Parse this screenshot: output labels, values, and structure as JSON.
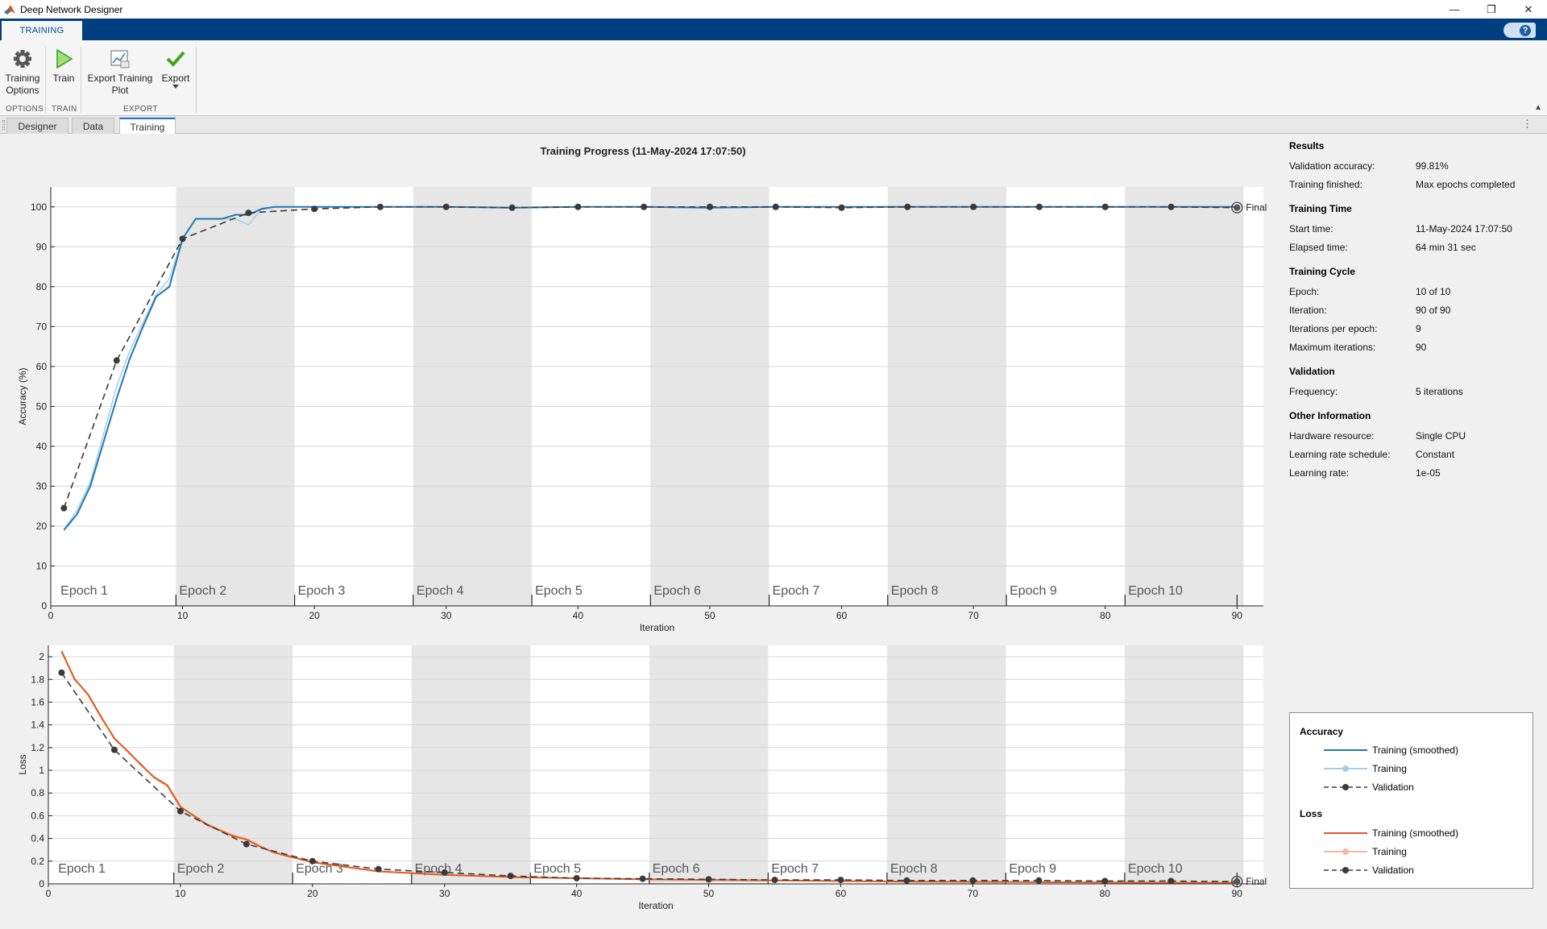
{
  "window": {
    "title": "Deep Network Designer",
    "controls": [
      "—",
      "❐",
      "✕"
    ]
  },
  "ribbon": {
    "active_tab": "TRAINING",
    "help": "?"
  },
  "toolstrip": {
    "training_options": [
      "Training",
      "Options"
    ],
    "train": "Train",
    "export_plot": [
      "Export Training",
      "Plot"
    ],
    "export": "Export",
    "sections": {
      "options": "OPTIONS",
      "train": "TRAIN",
      "export": "EXPORT"
    }
  },
  "doc_tabs": [
    "Designer",
    "Data",
    "Training"
  ],
  "active_doc_tab": "Training",
  "results": {
    "heading": "Results",
    "validation_accuracy_label": "Validation accuracy:",
    "validation_accuracy": "99.81%",
    "training_finished_label": "Training finished:",
    "training_finished": "Max epochs completed"
  },
  "training_time": {
    "heading": "Training Time",
    "start_label": "Start time:",
    "start": "11-May-2024 17:07:50",
    "elapsed_label": "Elapsed time:",
    "elapsed": "64 min 31 sec"
  },
  "training_cycle": {
    "heading": "Training Cycle",
    "epoch_label": "Epoch:",
    "epoch": "10 of 10",
    "iteration_label": "Iteration:",
    "iteration": "90 of 90",
    "ipe_label": "Iterations per epoch:",
    "ipe": "9",
    "max_label": "Maximum iterations:",
    "max": "90"
  },
  "validation": {
    "heading": "Validation",
    "freq_label": "Frequency:",
    "freq": "5 iterations"
  },
  "other": {
    "heading": "Other Information",
    "hw_label": "Hardware resource:",
    "hw": "Single CPU",
    "lrs_label": "Learning rate schedule:",
    "lrs": "Constant",
    "lr_label": "Learning rate:",
    "lr": "1e-05"
  },
  "legend": {
    "acc_heading": "Accuracy",
    "loss_heading": "Loss",
    "smoothed": "Training (smoothed)",
    "training": "Training",
    "validation": "Validation"
  },
  "colors": {
    "acc_line": "#1f77b4",
    "acc_raw": "#a6cde8",
    "loss_line": "#e2581c",
    "loss_raw": "#f2b9a0",
    "val": "#3a3a3a",
    "band": "#e6e6e6"
  },
  "chart_data": [
    {
      "type": "line",
      "title": "Training Progress (11-May-2024 17:07:50)",
      "xlabel": "Iteration",
      "ylabel": "Accuracy (%)",
      "xlim": [
        0,
        92
      ],
      "ylim": [
        0,
        105
      ],
      "xticks": [
        0,
        10,
        20,
        30,
        40,
        50,
        60,
        70,
        80,
        90
      ],
      "yticks": [
        0,
        10,
        20,
        30,
        40,
        50,
        60,
        70,
        80,
        90,
        100
      ],
      "epochs": [
        "Epoch 1",
        "Epoch 2",
        "Epoch 3",
        "Epoch 4",
        "Epoch 5",
        "Epoch 6",
        "Epoch 7",
        "Epoch 8",
        "Epoch 9",
        "Epoch 10"
      ],
      "final_label": "Final",
      "series": [
        {
          "name": "Training (smoothed)",
          "x": [
            1,
            2,
            3,
            4,
            5,
            6,
            7,
            8,
            9,
            10,
            11,
            12,
            13,
            14,
            15,
            16,
            17,
            18,
            19,
            20,
            25,
            30,
            35,
            40,
            45,
            50,
            55,
            60,
            65,
            70,
            75,
            80,
            85,
            90
          ],
          "y": [
            19,
            23,
            30,
            41,
            52,
            62,
            70,
            77.5,
            80,
            92,
            97,
            97,
            97,
            98,
            98,
            99.5,
            100,
            100,
            100,
            100,
            100,
            100,
            99.8,
            100,
            100,
            99.8,
            100,
            100,
            100,
            100,
            100,
            100,
            100,
            100
          ]
        },
        {
          "name": "Training",
          "x": [
            1,
            2,
            3,
            4,
            5,
            6,
            7,
            8,
            9,
            10,
            11,
            12,
            13,
            14,
            15,
            16,
            17,
            18,
            19,
            20,
            25,
            30,
            35,
            40,
            45,
            50,
            55,
            60,
            65,
            70,
            75,
            80,
            85,
            90
          ],
          "y": [
            19,
            24,
            31,
            43,
            55,
            64,
            71,
            78,
            82,
            92,
            97,
            97,
            97,
            97,
            95.5,
            99.5,
            100,
            100,
            100,
            100,
            100,
            100,
            99.8,
            100,
            100,
            99.7,
            100,
            100,
            100,
            100,
            100,
            100,
            100,
            100
          ]
        },
        {
          "name": "Validation",
          "x": [
            1,
            5,
            10,
            15,
            20,
            25,
            30,
            35,
            40,
            45,
            50,
            55,
            60,
            65,
            70,
            75,
            80,
            85,
            90
          ],
          "y": [
            24.5,
            61.5,
            92,
            98.5,
            99.5,
            100,
            100,
            99.8,
            100,
            100,
            100,
            100,
            99.8,
            100,
            100,
            100,
            100,
            100,
            99.81
          ]
        }
      ]
    },
    {
      "type": "line",
      "xlabel": "Iteration",
      "ylabel": "Loss",
      "xlim": [
        0,
        92
      ],
      "ylim": [
        0,
        2.1
      ],
      "xticks": [
        0,
        10,
        20,
        30,
        40,
        50,
        60,
        70,
        80,
        90
      ],
      "yticks": [
        0,
        0.2,
        0.4,
        0.6,
        0.8,
        1,
        1.2,
        1.4,
        1.6,
        1.8,
        2
      ],
      "epochs": [
        "Epoch 1",
        "Epoch 2",
        "Epoch 3",
        "Epoch 4",
        "Epoch 5",
        "Epoch 6",
        "Epoch 7",
        "Epoch 8",
        "Epoch 9",
        "Epoch 10"
      ],
      "final_label": "Final",
      "series": [
        {
          "name": "Training (smoothed)",
          "x": [
            1,
            2,
            3,
            4,
            5,
            6,
            7,
            8,
            9,
            10,
            11,
            12,
            13,
            14,
            15,
            16,
            17,
            18,
            19,
            20,
            25,
            30,
            35,
            40,
            45,
            50,
            55,
            60,
            65,
            70,
            75,
            80,
            85,
            90
          ],
          "y": [
            2.05,
            1.8,
            1.67,
            1.47,
            1.28,
            1.17,
            1.05,
            0.94,
            0.87,
            0.68,
            0.6,
            0.52,
            0.47,
            0.42,
            0.39,
            0.33,
            0.28,
            0.25,
            0.22,
            0.19,
            0.11,
            0.08,
            0.06,
            0.05,
            0.04,
            0.035,
            0.03,
            0.025,
            0.02,
            0.018,
            0.015,
            0.012,
            0.01,
            0.009
          ]
        },
        {
          "name": "Training",
          "x": [
            1,
            2,
            3,
            4,
            5,
            6,
            7,
            8,
            9,
            10,
            11,
            12,
            13,
            14,
            15,
            16,
            17,
            18,
            19,
            20,
            25,
            30,
            35,
            40,
            45,
            50,
            55,
            60,
            65,
            70,
            75,
            80,
            85,
            90
          ],
          "y": [
            2.04,
            1.81,
            1.66,
            1.46,
            1.29,
            1.16,
            1.06,
            0.93,
            0.86,
            0.67,
            0.61,
            0.53,
            0.48,
            0.43,
            0.4,
            0.34,
            0.28,
            0.24,
            0.22,
            0.19,
            0.11,
            0.08,
            0.06,
            0.05,
            0.04,
            0.035,
            0.03,
            0.025,
            0.02,
            0.018,
            0.015,
            0.012,
            0.01,
            0.009
          ]
        },
        {
          "name": "Validation",
          "x": [
            1,
            5,
            10,
            15,
            20,
            25,
            30,
            35,
            40,
            45,
            50,
            55,
            60,
            65,
            70,
            75,
            80,
            85,
            90
          ],
          "y": [
            1.86,
            1.18,
            0.64,
            0.35,
            0.2,
            0.13,
            0.1,
            0.07,
            0.05,
            0.045,
            0.04,
            0.035,
            0.035,
            0.03,
            0.03,
            0.03,
            0.025,
            0.025,
            0.02
          ]
        }
      ]
    }
  ]
}
